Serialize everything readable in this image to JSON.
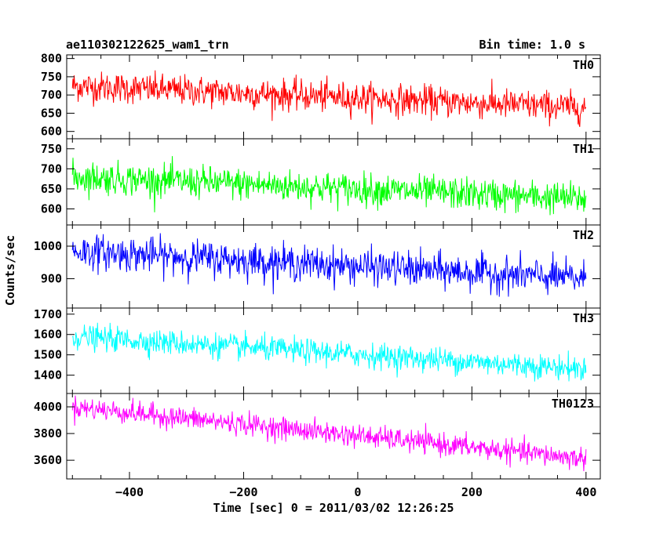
{
  "header": {
    "title": "ae110302122625_wam1_trn",
    "bin_time": "Bin time: 1.0 s"
  },
  "chart_data": {
    "type": "line",
    "title": "ae110302122625_wam1_trn",
    "xlabel": "Time [sec] 0 = 2011/03/02 12:26:25",
    "ylabel": "Counts/sec",
    "xlim": [
      -510,
      425
    ],
    "x_ticks": [
      -400,
      -200,
      0,
      200,
      400
    ],
    "x_step": 1,
    "x_range": [
      -500,
      400
    ],
    "panels": [
      {
        "name": "TH0",
        "color": "#ff0000",
        "ylim": [
          580,
          810
        ],
        "yticks": [
          600,
          650,
          700,
          750,
          800
        ],
        "start_mean": 725,
        "end_mean": 665,
        "noise": 38
      },
      {
        "name": "TH1",
        "color": "#00ff00",
        "ylim": [
          560,
          775
        ],
        "yticks": [
          600,
          650,
          700,
          750
        ],
        "start_mean": 680,
        "end_mean": 625,
        "noise": 36
      },
      {
        "name": "TH2",
        "color": "#0000ff",
        "ylim": [
          810,
          1065
        ],
        "yticks": [
          900,
          1000
        ],
        "start_mean": 985,
        "end_mean": 900,
        "noise": 48
      },
      {
        "name": "TH3",
        "color": "#00ffff",
        "ylim": [
          1310,
          1730
        ],
        "yticks": [
          1400,
          1500,
          1600,
          1700
        ],
        "start_mean": 1590,
        "end_mean": 1430,
        "noise": 55
      },
      {
        "name": "TH0123",
        "color": "#ff00ff",
        "ylim": [
          3460,
          4100
        ],
        "yticks": [
          3600,
          3800,
          4000
        ],
        "start_mean": 4000,
        "end_mean": 3610,
        "noise": 75
      }
    ]
  }
}
